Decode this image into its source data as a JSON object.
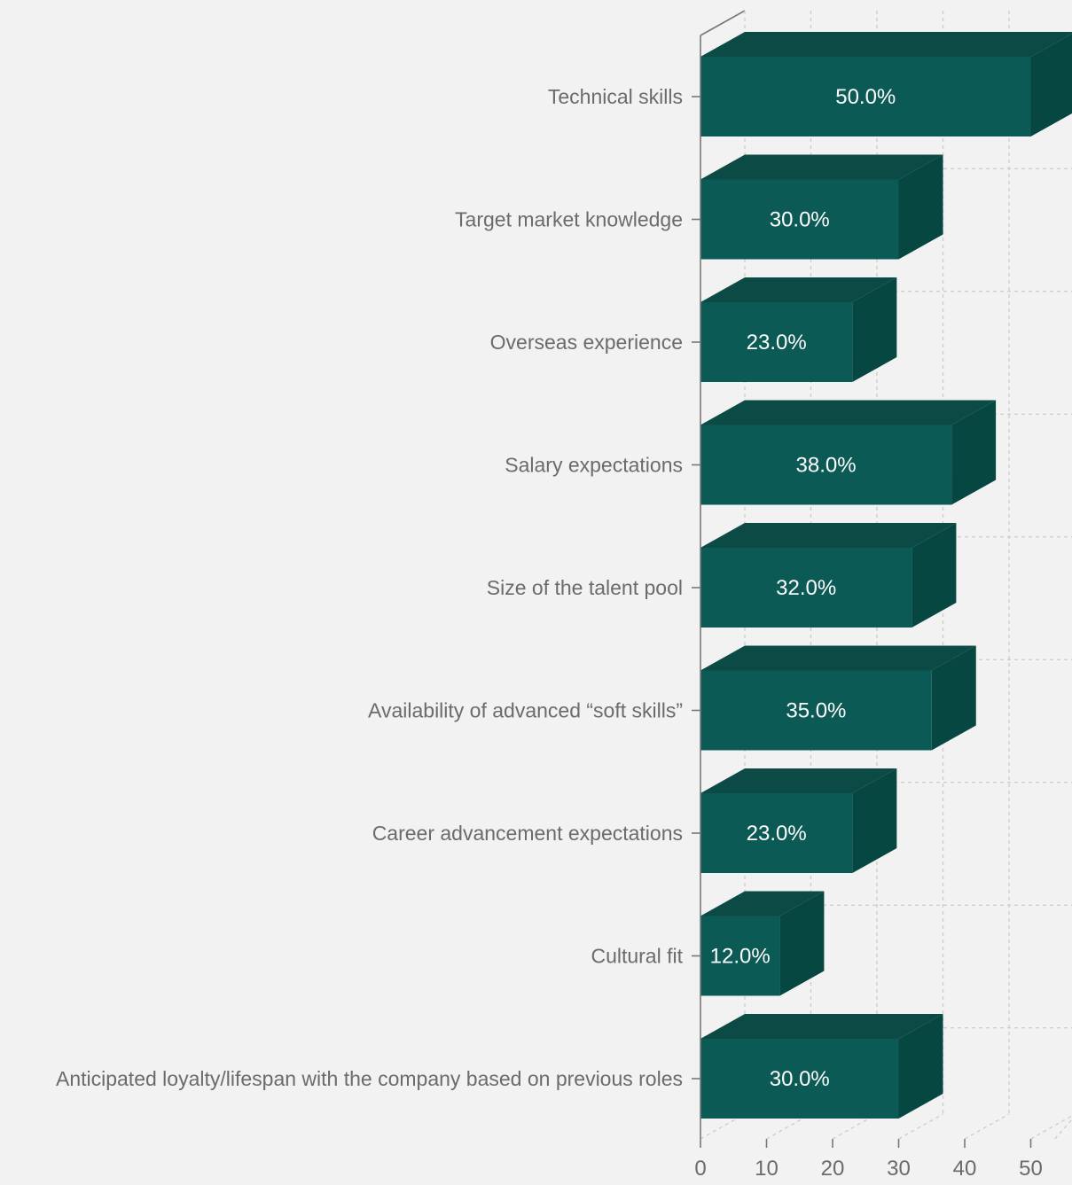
{
  "chart_data": {
    "type": "bar",
    "orientation": "horizontal",
    "three_d": true,
    "categories": [
      "Technical skills",
      "Target market knowledge",
      "Overseas experience",
      "Salary expectations",
      "Size of the talent pool",
      "Availability of advanced “soft skills”",
      "Career advancement expectations",
      "Cultural fit",
      "Anticipated loyalty/lifespan with the company based on previous roles"
    ],
    "values": [
      50,
      30,
      23,
      38,
      32,
      35,
      23,
      12,
      30
    ],
    "data_labels": [
      "50.0%",
      "30.0%",
      "23.0%",
      "38.0%",
      "32.0%",
      "35.0%",
      "23.0%",
      "12.0%",
      "30.0%"
    ],
    "x_ticks": [
      "0",
      "10",
      "20",
      "30",
      "40",
      "50"
    ],
    "xlim": [
      0,
      55
    ],
    "grid": true,
    "legend": "none",
    "colors": {
      "bar_front": "#0b5a55",
      "bar_top": "#0c4b45",
      "bar_side": "#074742",
      "background": "#f2f2f2"
    }
  }
}
